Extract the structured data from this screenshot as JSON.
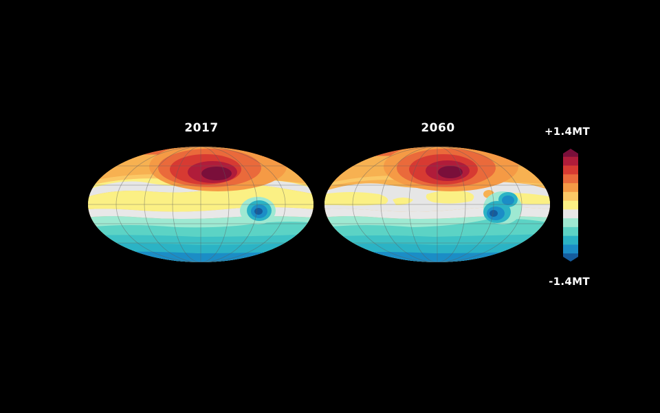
{
  "maps": [
    {
      "title": "2017"
    },
    {
      "title": "2060"
    }
  ],
  "colorbar": {
    "max_label": "+1.4MT",
    "min_label": "-1.4MT",
    "colors": [
      "#7a0f3a",
      "#b01c3a",
      "#d73a32",
      "#ea6a3b",
      "#f59a45",
      "#fbc866",
      "#fbf084",
      "#e8e8e8",
      "#9ee9d2",
      "#5cd3c5",
      "#2bb3c5",
      "#1b8dc6",
      "#155c9d"
    ]
  },
  "background_color": "#000000"
}
